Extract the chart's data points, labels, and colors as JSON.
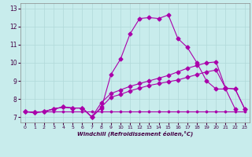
{
  "xlabel": "Windchill (Refroidissement éolien,°C)",
  "bg_color": "#c8ecec",
  "grid_color": "#b0d8d8",
  "line_color": "#aa00aa",
  "ylim": [
    6.7,
    13.3
  ],
  "xlim": [
    -0.5,
    23.5
  ],
  "yticks": [
    7,
    8,
    9,
    10,
    11,
    12,
    13
  ],
  "xticks": [
    0,
    1,
    2,
    3,
    4,
    5,
    6,
    7,
    8,
    9,
    10,
    11,
    12,
    13,
    14,
    15,
    16,
    17,
    18,
    19,
    20,
    21,
    22,
    23
  ],
  "line1_x": [
    0,
    1,
    2,
    3,
    4,
    5,
    6,
    7,
    8,
    9,
    10,
    11,
    12,
    13,
    14,
    15,
    16,
    17,
    18,
    19,
    20,
    21,
    22
  ],
  "line1_y": [
    7.3,
    7.25,
    7.3,
    7.45,
    7.55,
    7.5,
    7.5,
    7.0,
    7.5,
    9.35,
    10.2,
    11.6,
    12.45,
    12.5,
    12.45,
    12.65,
    11.35,
    10.85,
    10.0,
    9.0,
    8.55,
    8.55,
    7.45
  ],
  "line2_x": [
    0,
    1,
    2,
    3,
    4,
    5,
    6,
    7,
    8,
    9,
    10,
    11,
    12,
    13,
    14,
    15,
    16,
    17,
    18,
    19,
    20,
    21,
    22,
    23
  ],
  "line2_y": [
    7.3,
    7.25,
    7.3,
    7.45,
    7.55,
    7.5,
    7.5,
    7.0,
    7.55,
    8.1,
    8.25,
    8.45,
    8.6,
    8.75,
    8.85,
    8.95,
    9.05,
    9.2,
    9.35,
    9.5,
    9.6,
    8.6,
    8.55,
    7.45
  ],
  "line3_x": [
    0,
    1,
    2,
    3,
    4,
    5,
    6,
    7,
    8,
    9,
    10,
    11,
    12,
    13,
    14,
    15,
    16,
    17,
    18,
    19,
    20,
    21,
    22,
    23
  ],
  "line3_y": [
    7.3,
    7.25,
    7.3,
    7.45,
    7.55,
    7.5,
    7.5,
    7.0,
    7.8,
    8.3,
    8.5,
    8.7,
    8.85,
    9.0,
    9.15,
    9.3,
    9.5,
    9.7,
    9.85,
    10.0,
    10.05,
    8.6,
    8.55,
    7.45
  ],
  "line4_x": [
    0,
    1,
    2,
    3,
    4,
    5,
    6,
    7,
    8,
    9,
    10,
    11,
    12,
    13,
    14,
    15,
    16,
    17,
    18,
    19,
    20,
    21,
    22,
    23
  ],
  "line4_y": [
    7.3,
    7.3,
    7.3,
    7.3,
    7.3,
    7.3,
    7.3,
    7.3,
    7.3,
    7.3,
    7.3,
    7.3,
    7.3,
    7.3,
    7.3,
    7.3,
    7.3,
    7.3,
    7.3,
    7.3,
    7.3,
    7.3,
    7.3,
    7.3
  ]
}
